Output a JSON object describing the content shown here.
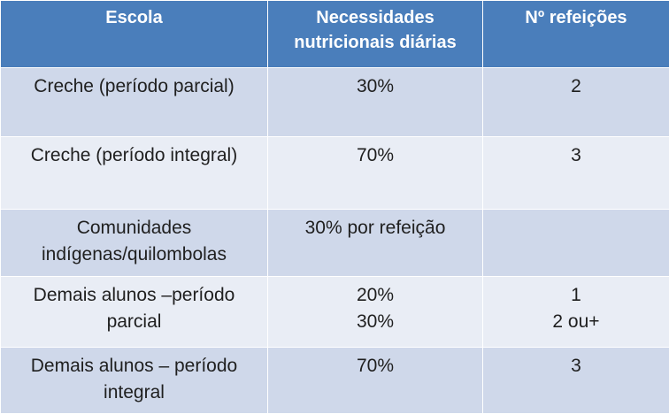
{
  "table": {
    "headers": [
      "Escola",
      "Necessidades nutricionais diárias",
      "Nº refeições"
    ],
    "rows": [
      {
        "escola": "Creche (período parcial)",
        "necessidades": [
          "30%"
        ],
        "refeicoes": [
          "2"
        ]
      },
      {
        "escola": "Creche (período integral)",
        "necessidades": [
          "70%"
        ],
        "refeicoes": [
          "3"
        ]
      },
      {
        "escola": "Comunidades indígenas/quilombolas",
        "necessidades": [
          "30% por refeição"
        ],
        "refeicoes": []
      },
      {
        "escola": "Demais alunos –período parcial",
        "necessidades": [
          "20%",
          "30%"
        ],
        "refeicoes": [
          "1",
          "2 ou+"
        ]
      },
      {
        "escola": "Demais alunos – período integral",
        "necessidades": [
          "70%"
        ],
        "refeicoes": [
          "3"
        ]
      }
    ]
  },
  "colors": {
    "header_bg": "#4a7ebb",
    "row_dark": "#cfd8ea",
    "row_light": "#e9edf5"
  }
}
